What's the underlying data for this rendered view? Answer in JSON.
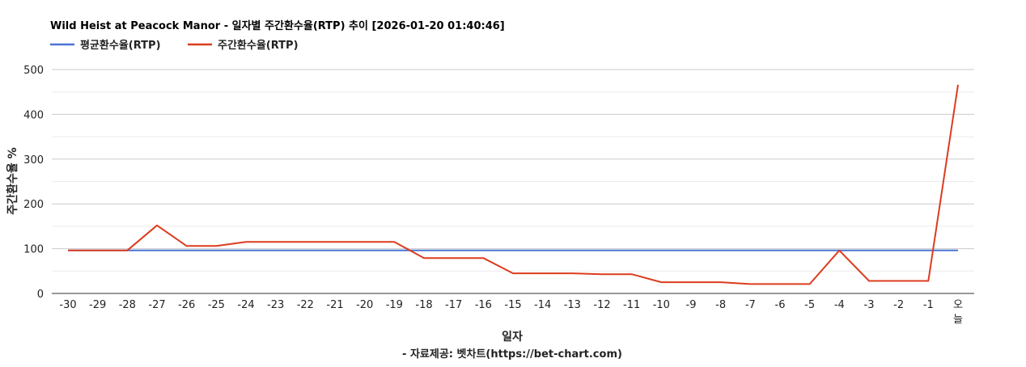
{
  "chart_data": {
    "type": "line",
    "title": "Wild Heist at Peacock Manor - 일자별 주간환수율(RTP) 추이 [2026-01-20 01:40:46]",
    "xlabel": "일자",
    "ylabel": "주간환수율 %",
    "source": "- 자료제공: 벳차트(https://bet-chart.com)",
    "legend_position": "top-left",
    "grid": true,
    "ylim": [
      0,
      500
    ],
    "yticks": [
      "0",
      "100",
      "200",
      "300",
      "400",
      "500"
    ],
    "categories": [
      "-30",
      "-29",
      "-28",
      "-27",
      "-26",
      "-25",
      "-24",
      "-23",
      "-22",
      "-21",
      "-20",
      "-19",
      "-18",
      "-17",
      "-16",
      "-15",
      "-14",
      "-13",
      "-12",
      "-11",
      "-10",
      "-9",
      "-8",
      "-7",
      "-6",
      "-5",
      "-4",
      "-3",
      "-2",
      "-1",
      "오늘"
    ],
    "series": [
      {
        "name": "평균환수율(RTP)",
        "color": "#4a74d4",
        "values": [
          96,
          96,
          96,
          96,
          96,
          96,
          96,
          96,
          96,
          96,
          96,
          96,
          96,
          96,
          96,
          96,
          96,
          96,
          96,
          96,
          96,
          96,
          96,
          96,
          96,
          96,
          96,
          96,
          96,
          96,
          96
        ]
      },
      {
        "name": "주간환수율(RTP)",
        "color": "#dc3c1e",
        "values": [
          96,
          96,
          96,
          152,
          106,
          106,
          115,
          115,
          115,
          115,
          115,
          115,
          79,
          79,
          79,
          45,
          45,
          45,
          43,
          43,
          25,
          25,
          25,
          21,
          21,
          21,
          96,
          28,
          28,
          28,
          466
        ]
      }
    ]
  }
}
